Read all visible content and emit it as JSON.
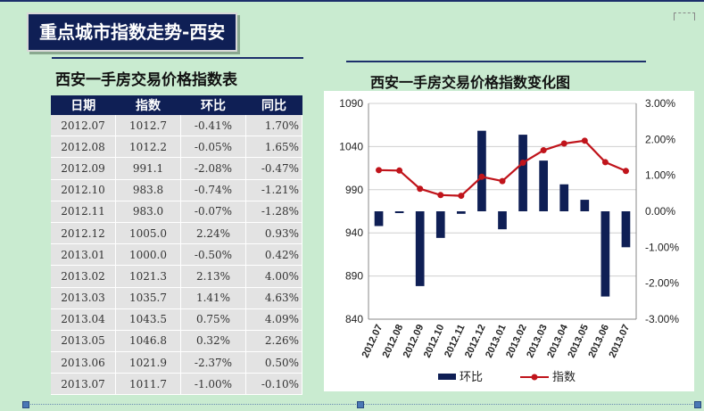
{
  "slide": {
    "title": "重点城市指数走势-西安"
  },
  "table": {
    "title": "西安一手房交易价格指数表",
    "headers": [
      "日期",
      "指数",
      "环比",
      "同比"
    ],
    "rows": [
      [
        "2012.07",
        "1012.7",
        "-0.41%",
        "1.70%"
      ],
      [
        "2012.08",
        "1012.2",
        "-0.05%",
        "1.65%"
      ],
      [
        "2012.09",
        "991.1",
        "-2.08%",
        "-0.47%"
      ],
      [
        "2012.10",
        "983.8",
        "-0.74%",
        "-1.21%"
      ],
      [
        "2012.11",
        "983.0",
        "-0.07%",
        "-1.28%"
      ],
      [
        "2012.12",
        "1005.0",
        "2.24%",
        "0.93%"
      ],
      [
        "2013.01",
        "1000.0",
        "-0.50%",
        "0.42%"
      ],
      [
        "2013.02",
        "1021.3",
        "2.13%",
        "4.00%"
      ],
      [
        "2013.03",
        "1035.7",
        "1.41%",
        "4.63%"
      ],
      [
        "2013.04",
        "1043.5",
        "0.75%",
        "4.09%"
      ],
      [
        "2013.05",
        "1046.8",
        "0.32%",
        "2.26%"
      ],
      [
        "2013.06",
        "1021.9",
        "-2.37%",
        "0.50%"
      ],
      [
        "2013.07",
        "1011.7",
        "-1.00%",
        "-0.10%"
      ]
    ]
  },
  "chart_data": {
    "type": "bar",
    "title": "西安一手房交易价格指数变化图",
    "categories": [
      "2012.07",
      "2012.08",
      "2012.09",
      "2012.10",
      "2012.11",
      "2012.12",
      "2013.01",
      "2013.02",
      "2013.03",
      "2013.04",
      "2013.05",
      "2013.06",
      "2013.07"
    ],
    "series": [
      {
        "name": "环比",
        "type": "bar",
        "axis": "right",
        "color": "#0f1f55",
        "values": [
          -0.41,
          -0.05,
          -2.08,
          -0.74,
          -0.07,
          2.24,
          -0.5,
          2.13,
          1.41,
          0.75,
          0.32,
          -2.37,
          -1.0
        ]
      },
      {
        "name": "指数",
        "type": "line",
        "axis": "left",
        "color": "#c0141b",
        "values": [
          1012.7,
          1012.2,
          991.1,
          983.8,
          983.0,
          1005.0,
          1000.0,
          1021.3,
          1035.7,
          1043.5,
          1046.8,
          1021.9,
          1011.7
        ]
      }
    ],
    "y_left": {
      "ticks": [
        "1090",
        "1040",
        "990",
        "940",
        "890",
        "840"
      ],
      "lim": [
        840,
        1090
      ]
    },
    "y_right": {
      "ticks": [
        "3.00%",
        "2.00%",
        "1.00%",
        "0.00%",
        "-1.00%",
        "-2.00%",
        "-3.00%"
      ],
      "lim": [
        -3,
        3
      ]
    },
    "grid": true,
    "legend_position": "bottom"
  }
}
